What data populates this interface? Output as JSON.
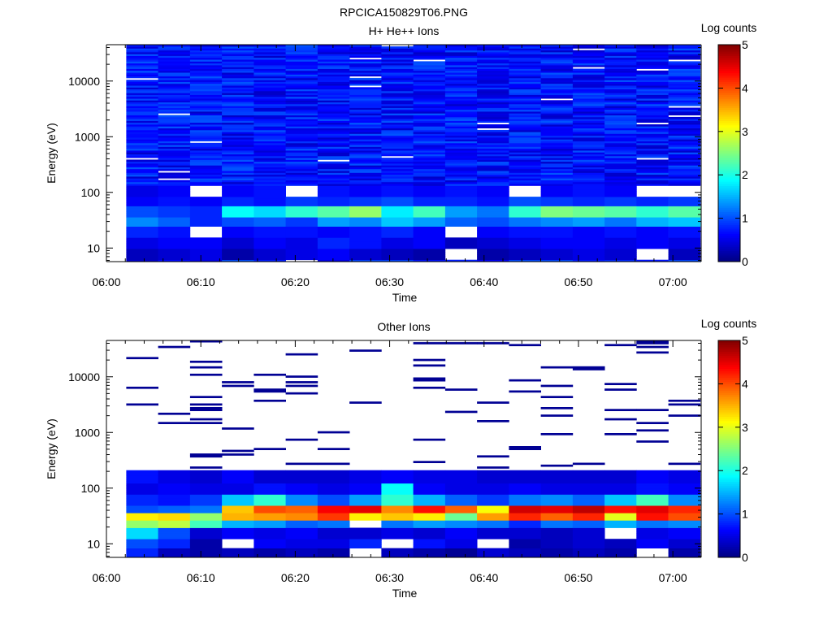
{
  "figure_title": "RPCICA150829T06.PNG",
  "chart_data": [
    {
      "type": "heatmap",
      "title": "H+ He++ Ions",
      "xlabel": "Time",
      "ylabel": "Energy (eV)",
      "x_tick_labels": [
        "06:00",
        "06:10",
        "06:20",
        "06:30",
        "06:40",
        "06:50",
        "07:00"
      ],
      "xlim": [
        "06:00",
        "07:03"
      ],
      "y_scale": "log",
      "y_tick_labels": [
        "10",
        "100",
        "1000",
        "10000"
      ],
      "ylim": [
        5.7,
        45000
      ],
      "colorbar": {
        "label": "Log counts",
        "range": [
          0,
          5
        ],
        "tick_labels": [
          "0",
          "1",
          "2",
          "3",
          "4",
          "5"
        ]
      },
      "description_values": {
        "x_time_columns": [
          "06:02",
          "06:05",
          "06:09",
          "06:12",
          "06:16",
          "06:19",
          "06:22",
          "06:26",
          "06:29",
          "06:33",
          "06:36",
          "06:39",
          "06:43",
          "06:46",
          "06:50",
          "06:53",
          "06:56",
          "07:00"
        ],
        "energy_band_log_counts": [
          {
            "energy_ev": 8,
            "values": [
              0.3,
              0.4,
              0.5,
              0.2,
              0.4,
              0.5,
              0.6,
              0.4,
              0.3,
              0.2,
              null,
              0.2,
              0.3,
              0.4,
              0.5,
              0.4,
              null,
              0.3
            ]
          },
          {
            "energy_ev": 12,
            "values": [
              0.5,
              0.6,
              0.6,
              0.4,
              0.6,
              0.5,
              0.8,
              0.7,
              0.5,
              0.6,
              0.3,
              0.4,
              0.5,
              0.6,
              0.6,
              0.5,
              0.6,
              0.5
            ]
          },
          {
            "energy_ev": 20,
            "values": [
              0.8,
              0.7,
              null,
              0.6,
              0.7,
              0.7,
              0.6,
              0.7,
              0.8,
              0.6,
              null,
              0.6,
              0.7,
              0.7,
              0.6,
              0.7,
              0.6,
              0.7
            ]
          },
          {
            "energy_ev": 30,
            "values": [
              1.3,
              1.1,
              0.8,
              1.0,
              1.1,
              0.9,
              1.4,
              1.3,
              1.6,
              1.4,
              1.1,
              1.0,
              1.2,
              1.3,
              1.4,
              1.2,
              1.5,
              1.6
            ]
          },
          {
            "energy_ev": 45,
            "values": [
              1.0,
              0.9,
              0.8,
              1.9,
              1.7,
              2.1,
              2.3,
              2.6,
              1.8,
              2.2,
              1.4,
              1.2,
              2.1,
              2.5,
              2.4,
              2.3,
              2.1,
              2.3
            ]
          },
          {
            "energy_ev": 70,
            "values": [
              0.6,
              0.7,
              0.6,
              0.8,
              0.7,
              0.9,
              0.8,
              0.9,
              1.0,
              0.8,
              0.8,
              0.7,
              1.0,
              0.9,
              0.8,
              0.9,
              0.8,
              0.9
            ]
          },
          {
            "energy_ev": 100,
            "values": [
              0.5,
              0.6,
              null,
              0.6,
              0.7,
              null,
              0.7,
              0.6,
              0.7,
              0.6,
              0.7,
              0.6,
              null,
              0.6,
              0.7,
              0.6,
              null,
              null
            ]
          }
        ],
        "background_above_100ev_log_counts": 0.7
      }
    },
    {
      "type": "heatmap",
      "title": "Other Ions",
      "xlabel": "Time",
      "ylabel": "Energy (eV)",
      "x_tick_labels": [
        "06:00",
        "06:10",
        "06:20",
        "06:30",
        "06:40",
        "06:50",
        "07:00"
      ],
      "xlim": [
        "06:00",
        "07:03"
      ],
      "y_scale": "log",
      "y_tick_labels": [
        "10",
        "100",
        "1000",
        "10000"
      ],
      "ylim": [
        5.7,
        45000
      ],
      "colorbar": {
        "label": "Log counts",
        "range": [
          0,
          5
        ],
        "tick_labels": [
          "0",
          "1",
          "2",
          "3",
          "4",
          "5"
        ]
      },
      "description_values": {
        "energy_band_log_counts": [
          {
            "energy_ev": 7,
            "values": [
              0.8,
              0.3,
              0.2,
              0.3,
              0.2,
              0.3,
              0.2,
              null,
              0.3,
              0.2,
              0.1,
              0.4,
              0.3,
              0.2,
              0.3,
              0.2,
              null,
              0.2
            ]
          },
          {
            "energy_ev": 10,
            "values": [
              1.0,
              0.8,
              0.2,
              null,
              0.6,
              0.5,
              0.5,
              0.8,
              null,
              0.7,
              0.5,
              null,
              0.2,
              0.3,
              0.4,
              0.3,
              0.6,
              0.4
            ]
          },
          {
            "energy_ev": 16,
            "values": [
              1.7,
              1.0,
              0.4,
              0.6,
              0.5,
              0.6,
              0.4,
              0.4,
              0.5,
              0.4,
              0.6,
              0.4,
              0.4,
              0.3,
              0.4,
              null,
              0.5,
              0.6
            ]
          },
          {
            "energy_ev": 22,
            "values": [
              2.6,
              2.8,
              2.2,
              1.5,
              1.4,
              1.1,
              1.2,
              null,
              1.2,
              1.4,
              1.3,
              1.2,
              0.8,
              1.2,
              1.1,
              1.5,
              1.2,
              1.3
            ]
          },
          {
            "energy_ev": 30,
            "values": [
              3.2,
              3.3,
              2.6,
              3.5,
              3.6,
              3.7,
              4.1,
              3.2,
              3.4,
              3.2,
              2.4,
              3.6,
              4.2,
              3.9,
              4.2,
              3.0,
              4.3,
              4.0
            ]
          },
          {
            "energy_ev": 42,
            "values": [
              1.0,
              1.1,
              1.2,
              3.4,
              4.0,
              3.9,
              4.4,
              4.5,
              3.7,
              4.3,
              3.9,
              3.1,
              4.6,
              4.5,
              4.7,
              4.3,
              4.5,
              4.2
            ]
          },
          {
            "energy_ev": 60,
            "values": [
              0.8,
              0.7,
              0.9,
              1.6,
              2.1,
              1.3,
              1.0,
              1.4,
              2.1,
              1.5,
              1.1,
              0.9,
              1.2,
              1.3,
              1.1,
              1.6,
              2.2,
              1.3
            ]
          },
          {
            "energy_ev": 100,
            "values": [
              0.5,
              0.6,
              0.5,
              0.5,
              0.7,
              0.6,
              0.5,
              0.6,
              1.9,
              0.6,
              0.5,
              0.5,
              0.6,
              0.5,
              0.5,
              0.5,
              0.7,
              0.6
            ]
          },
          {
            "energy_ev": 160,
            "values": [
              0.7,
              0.5,
              0.4,
              0.6,
              0.4,
              0.4,
              0.4,
              0.5,
              0.6,
              0.5,
              0.5,
              0.4,
              0.4,
              0.4,
              0.4,
              0.4,
              0.6,
              0.5
            ]
          }
        ],
        "sparse_high_energy_log_counts": 0.1
      }
    }
  ]
}
